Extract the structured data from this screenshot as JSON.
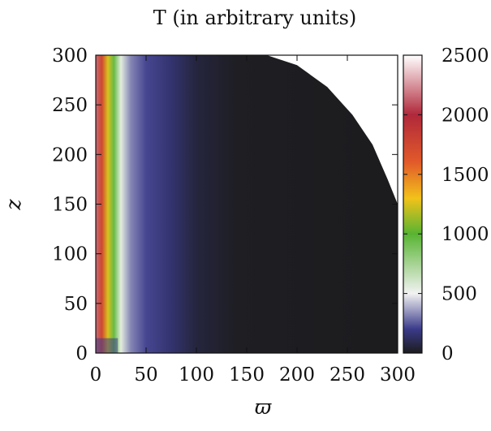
{
  "chart_data": {
    "type": "heatmap",
    "title": "T (in arbitrary units)",
    "xlabel": "ϖ",
    "ylabel": "z",
    "xlim": [
      0,
      300
    ],
    "ylim": [
      0,
      300
    ],
    "x_ticks": [
      "0",
      "50",
      "100",
      "150",
      "200",
      "250",
      "300"
    ],
    "y_ticks": [
      "0",
      "50",
      "100",
      "150",
      "200",
      "250",
      "300"
    ],
    "colorbar": {
      "range": [
        0,
        2500
      ],
      "ticks": [
        "0",
        "500",
        "1000",
        "1500",
        "2000",
        "2500"
      ],
      "colormap": [
        {
          "value": 0,
          "color": "#1c1c1e"
        },
        {
          "value": 200,
          "color": "#3a3a8a"
        },
        {
          "value": 500,
          "color": "#f2f2f2"
        },
        {
          "value": 1000,
          "color": "#58b432"
        },
        {
          "value": 1300,
          "color": "#f2c21a"
        },
        {
          "value": 1600,
          "color": "#e25a2a"
        },
        {
          "value": 2000,
          "color": "#b0283a"
        },
        {
          "value": 2500,
          "color": "#ffffff"
        }
      ]
    },
    "field": {
      "description_points": [
        {
          "x": 0,
          "T": 2150
        },
        {
          "x": 6,
          "T": 1750
        },
        {
          "x": 12,
          "T": 1250
        },
        {
          "x": 18,
          "T": 950
        },
        {
          "x": 25,
          "T": 550
        },
        {
          "x": 35,
          "T": 320
        },
        {
          "x": 50,
          "T": 220
        },
        {
          "x": 75,
          "T": 150
        },
        {
          "x": 100,
          "T": 60
        },
        {
          "x": 140,
          "T": 10
        },
        {
          "x": 300,
          "T": 0
        }
      ],
      "domain_boundary": [
        {
          "x": 170,
          "z": 300
        },
        {
          "x": 200,
          "z": 290
        },
        {
          "x": 230,
          "z": 268
        },
        {
          "x": 255,
          "z": 240
        },
        {
          "x": 275,
          "z": 210
        },
        {
          "x": 290,
          "z": 175
        },
        {
          "x": 300,
          "z": 150
        }
      ]
    }
  }
}
